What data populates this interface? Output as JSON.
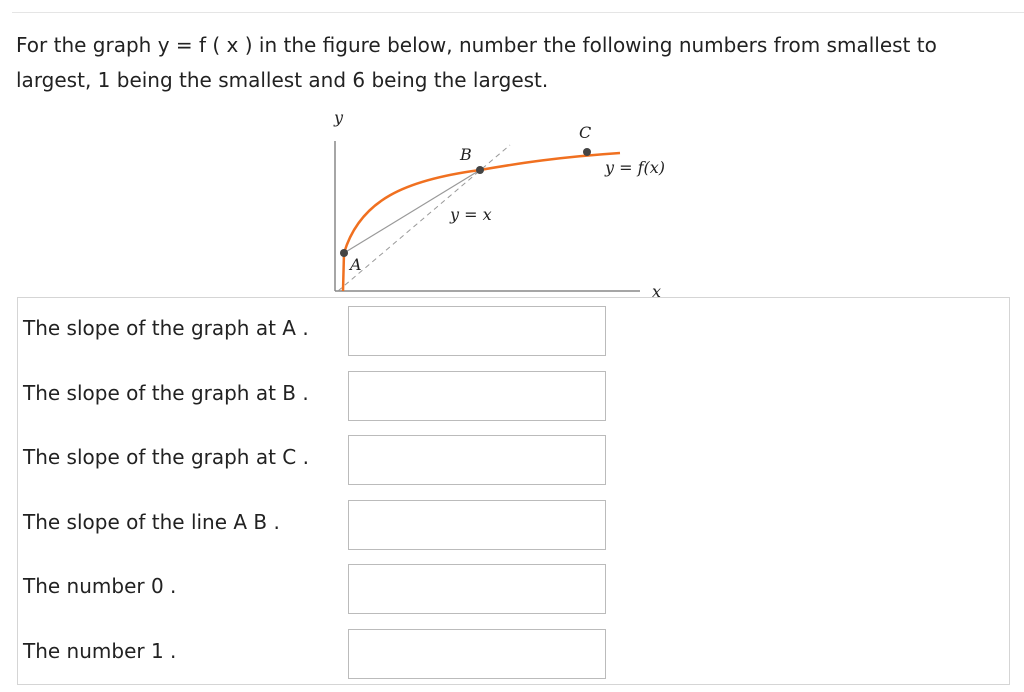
{
  "question": "For the graph  y = f ( x ) in the figure below, number the following numbers from smallest to largest, 1 being the smallest and 6 being the largest.",
  "figure": {
    "y_axis": "y",
    "x_axis": "x",
    "point_a": "A",
    "point_b": "B",
    "point_c": "C",
    "curve_label": "y = f(x)",
    "line_label": "y = x"
  },
  "rows": [
    {
      "label": "The slope of the graph at  A ."
    },
    {
      "label": "The slope of the graph at  B ."
    },
    {
      "label": "The slope of the graph at  C ."
    },
    {
      "label": "The slope of the line  A B ."
    },
    {
      "label": "The number 0 ."
    },
    {
      "label": "The number 1 ."
    }
  ]
}
